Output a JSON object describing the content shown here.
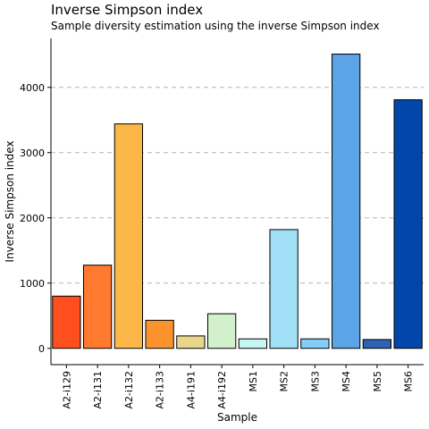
{
  "chart_data": {
    "type": "bar",
    "title": "Inverse Simpson index",
    "subtitle": "Sample diversity estimation using the inverse Simpson index",
    "xlabel": "Sample",
    "ylabel": "Inverse Simpson index",
    "categories": [
      "A2-i129",
      "A2-i131",
      "A2-i132",
      "A2-i133",
      "A4-i191",
      "A4-i192",
      "MS1",
      "MS2",
      "MS3",
      "MS4",
      "MS5",
      "MS6"
    ],
    "values": [
      800,
      1275,
      3440,
      430,
      190,
      530,
      145,
      1820,
      145,
      4510,
      135,
      3810
    ],
    "colors": [
      "#FF4F1F",
      "#FF7A2E",
      "#FBB848",
      "#FA932E",
      "#E8D68A",
      "#D2F0CC",
      "#C6F6F1",
      "#A0DFF6",
      "#86CCF9",
      "#5BA4E6",
      "#2F62B0",
      "#0346AA"
    ],
    "ylim": [
      -250,
      4750
    ],
    "yticks": [
      0,
      1000,
      2000,
      3000,
      4000
    ],
    "grid": "horizontal dashed",
    "legend": "none"
  }
}
